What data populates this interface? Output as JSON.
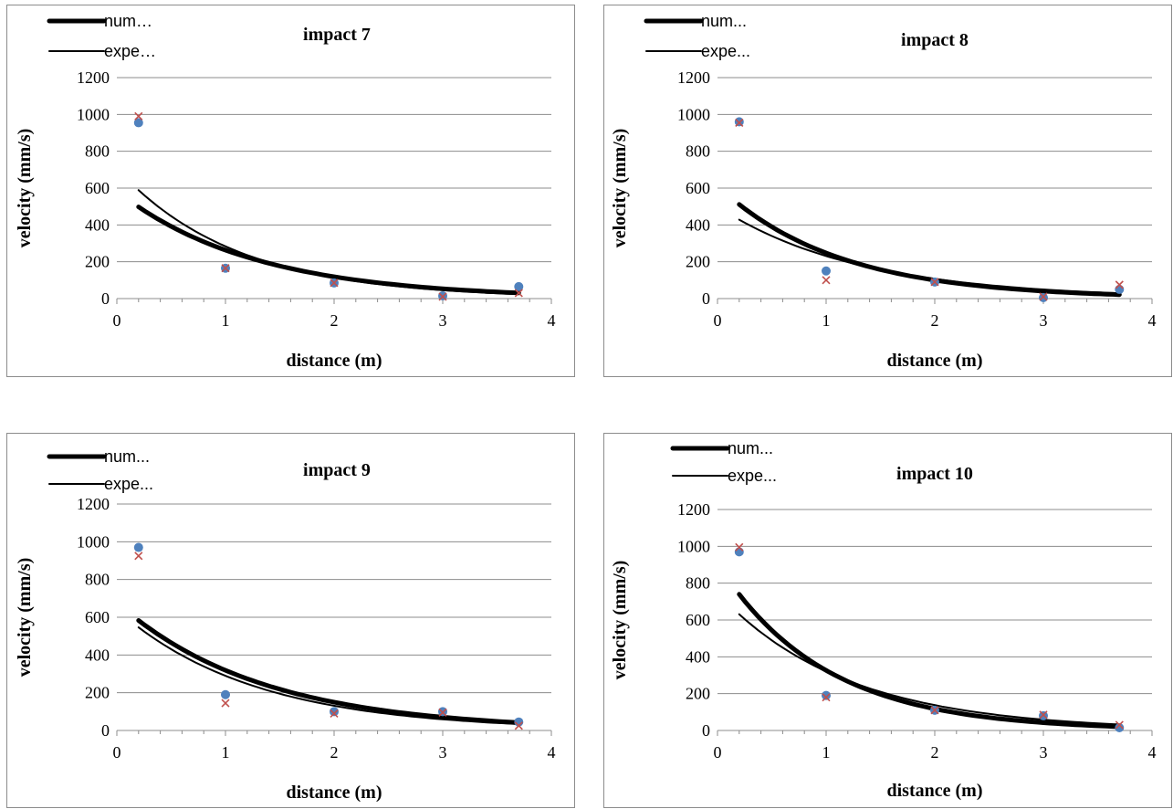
{
  "chart_data": [
    {
      "type": "scatter",
      "title": "impact 7",
      "xlabel": "distance (m)",
      "ylabel": "velocity (mm/s)",
      "xlim": [
        0,
        4
      ],
      "ylim": [
        0,
        1200
      ],
      "xticks": [
        0,
        1,
        2,
        3,
        4
      ],
      "yticks": [
        0,
        200,
        400,
        600,
        800,
        1000,
        1200
      ],
      "grid": true,
      "legend_position": "top-left",
      "legend": [
        "num…",
        "expe…"
      ],
      "series": [
        {
          "name": "num…",
          "marker": "circle",
          "color": "#4f81bd",
          "x": [
            0.2,
            1,
            2,
            3,
            3.7
          ],
          "y": [
            955,
            165,
            85,
            15,
            65
          ]
        },
        {
          "name": "expe…",
          "marker": "cross",
          "color": "#c0504d",
          "x": [
            0.2,
            1,
            2,
            3,
            3.7
          ],
          "y": [
            990,
            165,
            85,
            10,
            30
          ]
        }
      ],
      "trendlines": [
        {
          "series": "num…",
          "style": "thick",
          "color": "#000000",
          "x": [
            0.2,
            1,
            2,
            3,
            3.7
          ],
          "y": [
            495,
            262,
            120,
            55,
            30
          ]
        },
        {
          "series": "expe…",
          "style": "thin",
          "color": "#000000",
          "x": [
            0.2,
            1,
            2,
            3,
            3.7
          ],
          "y": [
            615,
            275,
            110,
            45,
            25
          ]
        }
      ]
    },
    {
      "type": "scatter",
      "title": "impact 8",
      "xlabel": "distance (m)",
      "ylabel": "velocity (mm/s)",
      "xlim": [
        0,
        4
      ],
      "ylim": [
        0,
        1200
      ],
      "xticks": [
        0,
        1,
        2,
        3,
        4
      ],
      "yticks": [
        0,
        200,
        400,
        600,
        800,
        1000,
        1200
      ],
      "grid": true,
      "legend_position": "top-left",
      "legend": [
        "num...",
        "expe..."
      ],
      "series": [
        {
          "name": "num...",
          "marker": "circle",
          "color": "#4f81bd",
          "x": [
            0.2,
            1,
            2,
            3,
            3.7
          ],
          "y": [
            960,
            150,
            90,
            5,
            50
          ]
        },
        {
          "name": "expe...",
          "marker": "cross",
          "color": "#c0504d",
          "x": [
            0.2,
            1,
            2,
            3,
            3.7
          ],
          "y": [
            955,
            100,
            90,
            10,
            75
          ]
        }
      ],
      "trendlines": [
        {
          "series": "num...",
          "style": "thick",
          "color": "#000000",
          "x": [
            0.2,
            1,
            2,
            3,
            3.7
          ],
          "y": [
            530,
            230,
            100,
            45,
            20
          ]
        },
        {
          "series": "expe...",
          "style": "thin",
          "color": "#000000",
          "x": [
            0.2,
            1,
            2,
            3,
            3.7
          ],
          "y": [
            410,
            240,
            110,
            50,
            28
          ]
        }
      ]
    },
    {
      "type": "scatter",
      "title": "impact 9",
      "xlabel": "distance (m)",
      "ylabel": "velocity (mm/s)",
      "xlim": [
        0,
        4
      ],
      "ylim": [
        0,
        1200
      ],
      "xticks": [
        0,
        1,
        2,
        3,
        4
      ],
      "yticks": [
        0,
        200,
        400,
        600,
        800,
        1000,
        1200
      ],
      "grid": true,
      "legend_position": "top-left",
      "legend": [
        "num...",
        "expe..."
      ],
      "series": [
        {
          "name": "num...",
          "marker": "circle",
          "color": "#4f81bd",
          "x": [
            0.2,
            1,
            2,
            3,
            3.7
          ],
          "y": [
            970,
            190,
            100,
            100,
            45
          ]
        },
        {
          "name": "expe...",
          "marker": "cross",
          "color": "#c0504d",
          "x": [
            0.2,
            1,
            2,
            3,
            3.7
          ],
          "y": [
            925,
            145,
            90,
            95,
            25
          ]
        }
      ],
      "trendlines": [
        {
          "series": "num...",
          "style": "thick",
          "color": "#000000",
          "x": [
            0.2,
            1,
            2,
            3,
            3.7
          ],
          "y": [
            575,
            310,
            155,
            78,
            38
          ]
        },
        {
          "series": "expe...",
          "style": "thin",
          "color": "#000000",
          "x": [
            0.2,
            1,
            2,
            3,
            3.7
          ],
          "y": [
            560,
            275,
            130,
            65,
            32
          ]
        }
      ]
    },
    {
      "type": "scatter",
      "title": "impact 10",
      "xlabel": "distance (m)",
      "ylabel": "velocity (mm/s)",
      "xlim": [
        0,
        4
      ],
      "ylim": [
        0,
        1200
      ],
      "xticks": [
        0,
        1,
        2,
        3,
        4
      ],
      "yticks": [
        0,
        200,
        400,
        600,
        800,
        1000,
        1200
      ],
      "grid": true,
      "legend_position": "top-left",
      "legend": [
        "num...",
        "expe..."
      ],
      "series": [
        {
          "name": "num...",
          "marker": "circle",
          "color": "#4f81bd",
          "x": [
            0.2,
            1,
            2,
            3,
            3.7
          ],
          "y": [
            970,
            190,
            110,
            80,
            15
          ]
        },
        {
          "name": "expe...",
          "marker": "cross",
          "color": "#c0504d",
          "x": [
            0.2,
            1,
            2,
            3,
            3.7
          ],
          "y": [
            995,
            180,
            110,
            85,
            30
          ]
        }
      ],
      "trendlines": [
        {
          "series": "num...",
          "style": "thick",
          "color": "#000000",
          "x": [
            0.2,
            1,
            2,
            3,
            3.7
          ],
          "y": [
            750,
            320,
            115,
            45,
            20
          ]
        },
        {
          "series": "expe...",
          "style": "thin",
          "color": "#000000",
          "x": [
            0.2,
            1,
            2,
            3,
            3.7
          ],
          "y": [
            625,
            320,
            140,
            60,
            32
          ]
        }
      ]
    }
  ]
}
